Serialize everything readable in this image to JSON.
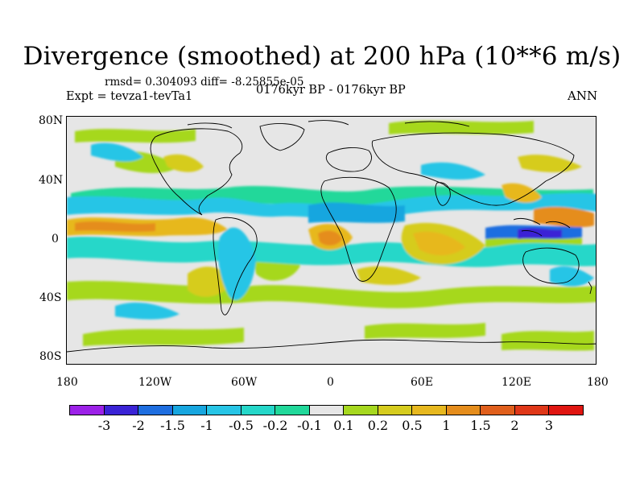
{
  "title": "Divergence (smoothed) at 200 hPa (10**6 m/s)",
  "stats": "rmsd= 0.304093 diff= -8.25855e-05",
  "experiment": "Expt = tevza1-tevTa1",
  "period": "0176kyr BP - 0176kyr BP",
  "season": "ANN",
  "lat_labels": [
    "80N",
    "40N",
    "0",
    "40S",
    "80S"
  ],
  "lon_labels": [
    "180",
    "120W",
    "60W",
    "0",
    "60E",
    "120E",
    "180"
  ],
  "colorbar": {
    "labels": [
      "-3",
      "-2",
      "-1.5",
      "-1",
      "-0.5",
      "-0.2",
      "-0.1",
      "0.1",
      "0.2",
      "0.5",
      "1",
      "1.5",
      "2",
      "3"
    ],
    "colors": [
      "#9c21e8",
      "#3a23d6",
      "#1e6ee0",
      "#17a6df",
      "#27c5e6",
      "#25d7c9",
      "#21d89a",
      "#e6e6e6",
      "#a6d81f",
      "#d6cc1e",
      "#e7b81f",
      "#e58d1c",
      "#e05f1c",
      "#df3718",
      "#e01611"
    ]
  },
  "colors": {
    "ocean_background": "#e6e6e6",
    "coastline": "#000000"
  }
}
